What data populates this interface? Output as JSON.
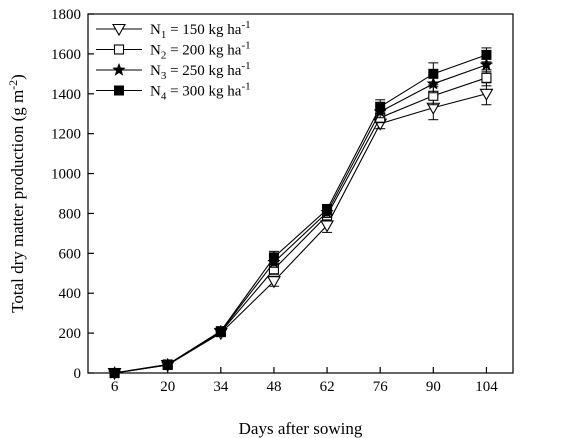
{
  "chart_data": {
    "type": "line",
    "xlabel": "Days after sowing",
    "ylabel": "Total dry matter production (g m⁻²)",
    "ylim": [
      0,
      1800
    ],
    "y_ticks": [
      0,
      200,
      400,
      600,
      800,
      1000,
      1200,
      1400,
      1600,
      1800
    ],
    "x": [
      6,
      20,
      34,
      48,
      62,
      76,
      90,
      104
    ],
    "x_ticks": [
      "6",
      "20",
      "34",
      "48",
      "62",
      "76",
      "90",
      "104"
    ],
    "error_bars": true,
    "legend_position": "top-left",
    "series": [
      {
        "name": "N1 = 150 kg ha-1",
        "legend": {
          "sym": "N",
          "sub": "1",
          "text": " = 150 kg ha",
          "sup": "-1"
        },
        "marker": "triangle-down-open",
        "values": [
          0,
          40,
          200,
          460,
          740,
          1250,
          1330,
          1400
        ],
        "errors": [
          5,
          8,
          12,
          25,
          35,
          25,
          60,
          55
        ]
      },
      {
        "name": "N2 = 200 kg ha-1",
        "legend": {
          "sym": "N",
          "sub": "2",
          "text": " = 200 kg ha",
          "sup": "-1"
        },
        "marker": "square-open",
        "values": [
          0,
          40,
          205,
          520,
          790,
          1280,
          1390,
          1480
        ],
        "errors": [
          5,
          8,
          12,
          25,
          25,
          25,
          45,
          40
        ]
      },
      {
        "name": "N3 = 250 kg ha-1",
        "legend": {
          "sym": "N",
          "sub": "3",
          "text": " = 250 kg ha",
          "sup": "-1"
        },
        "marker": "star",
        "values": [
          0,
          42,
          208,
          555,
          805,
          1310,
          1450,
          1545
        ],
        "errors": [
          5,
          8,
          12,
          25,
          25,
          30,
          45,
          35
        ]
      },
      {
        "name": "N4 = 300 kg ha-1",
        "legend": {
          "sym": "N",
          "sub": "4",
          "text": " = 300 kg ha",
          "sup": "-1"
        },
        "marker": "square-filled",
        "values": [
          0,
          43,
          210,
          580,
          820,
          1335,
          1500,
          1595
        ],
        "errors": [
          5,
          8,
          12,
          30,
          25,
          35,
          55,
          35
        ]
      }
    ]
  }
}
